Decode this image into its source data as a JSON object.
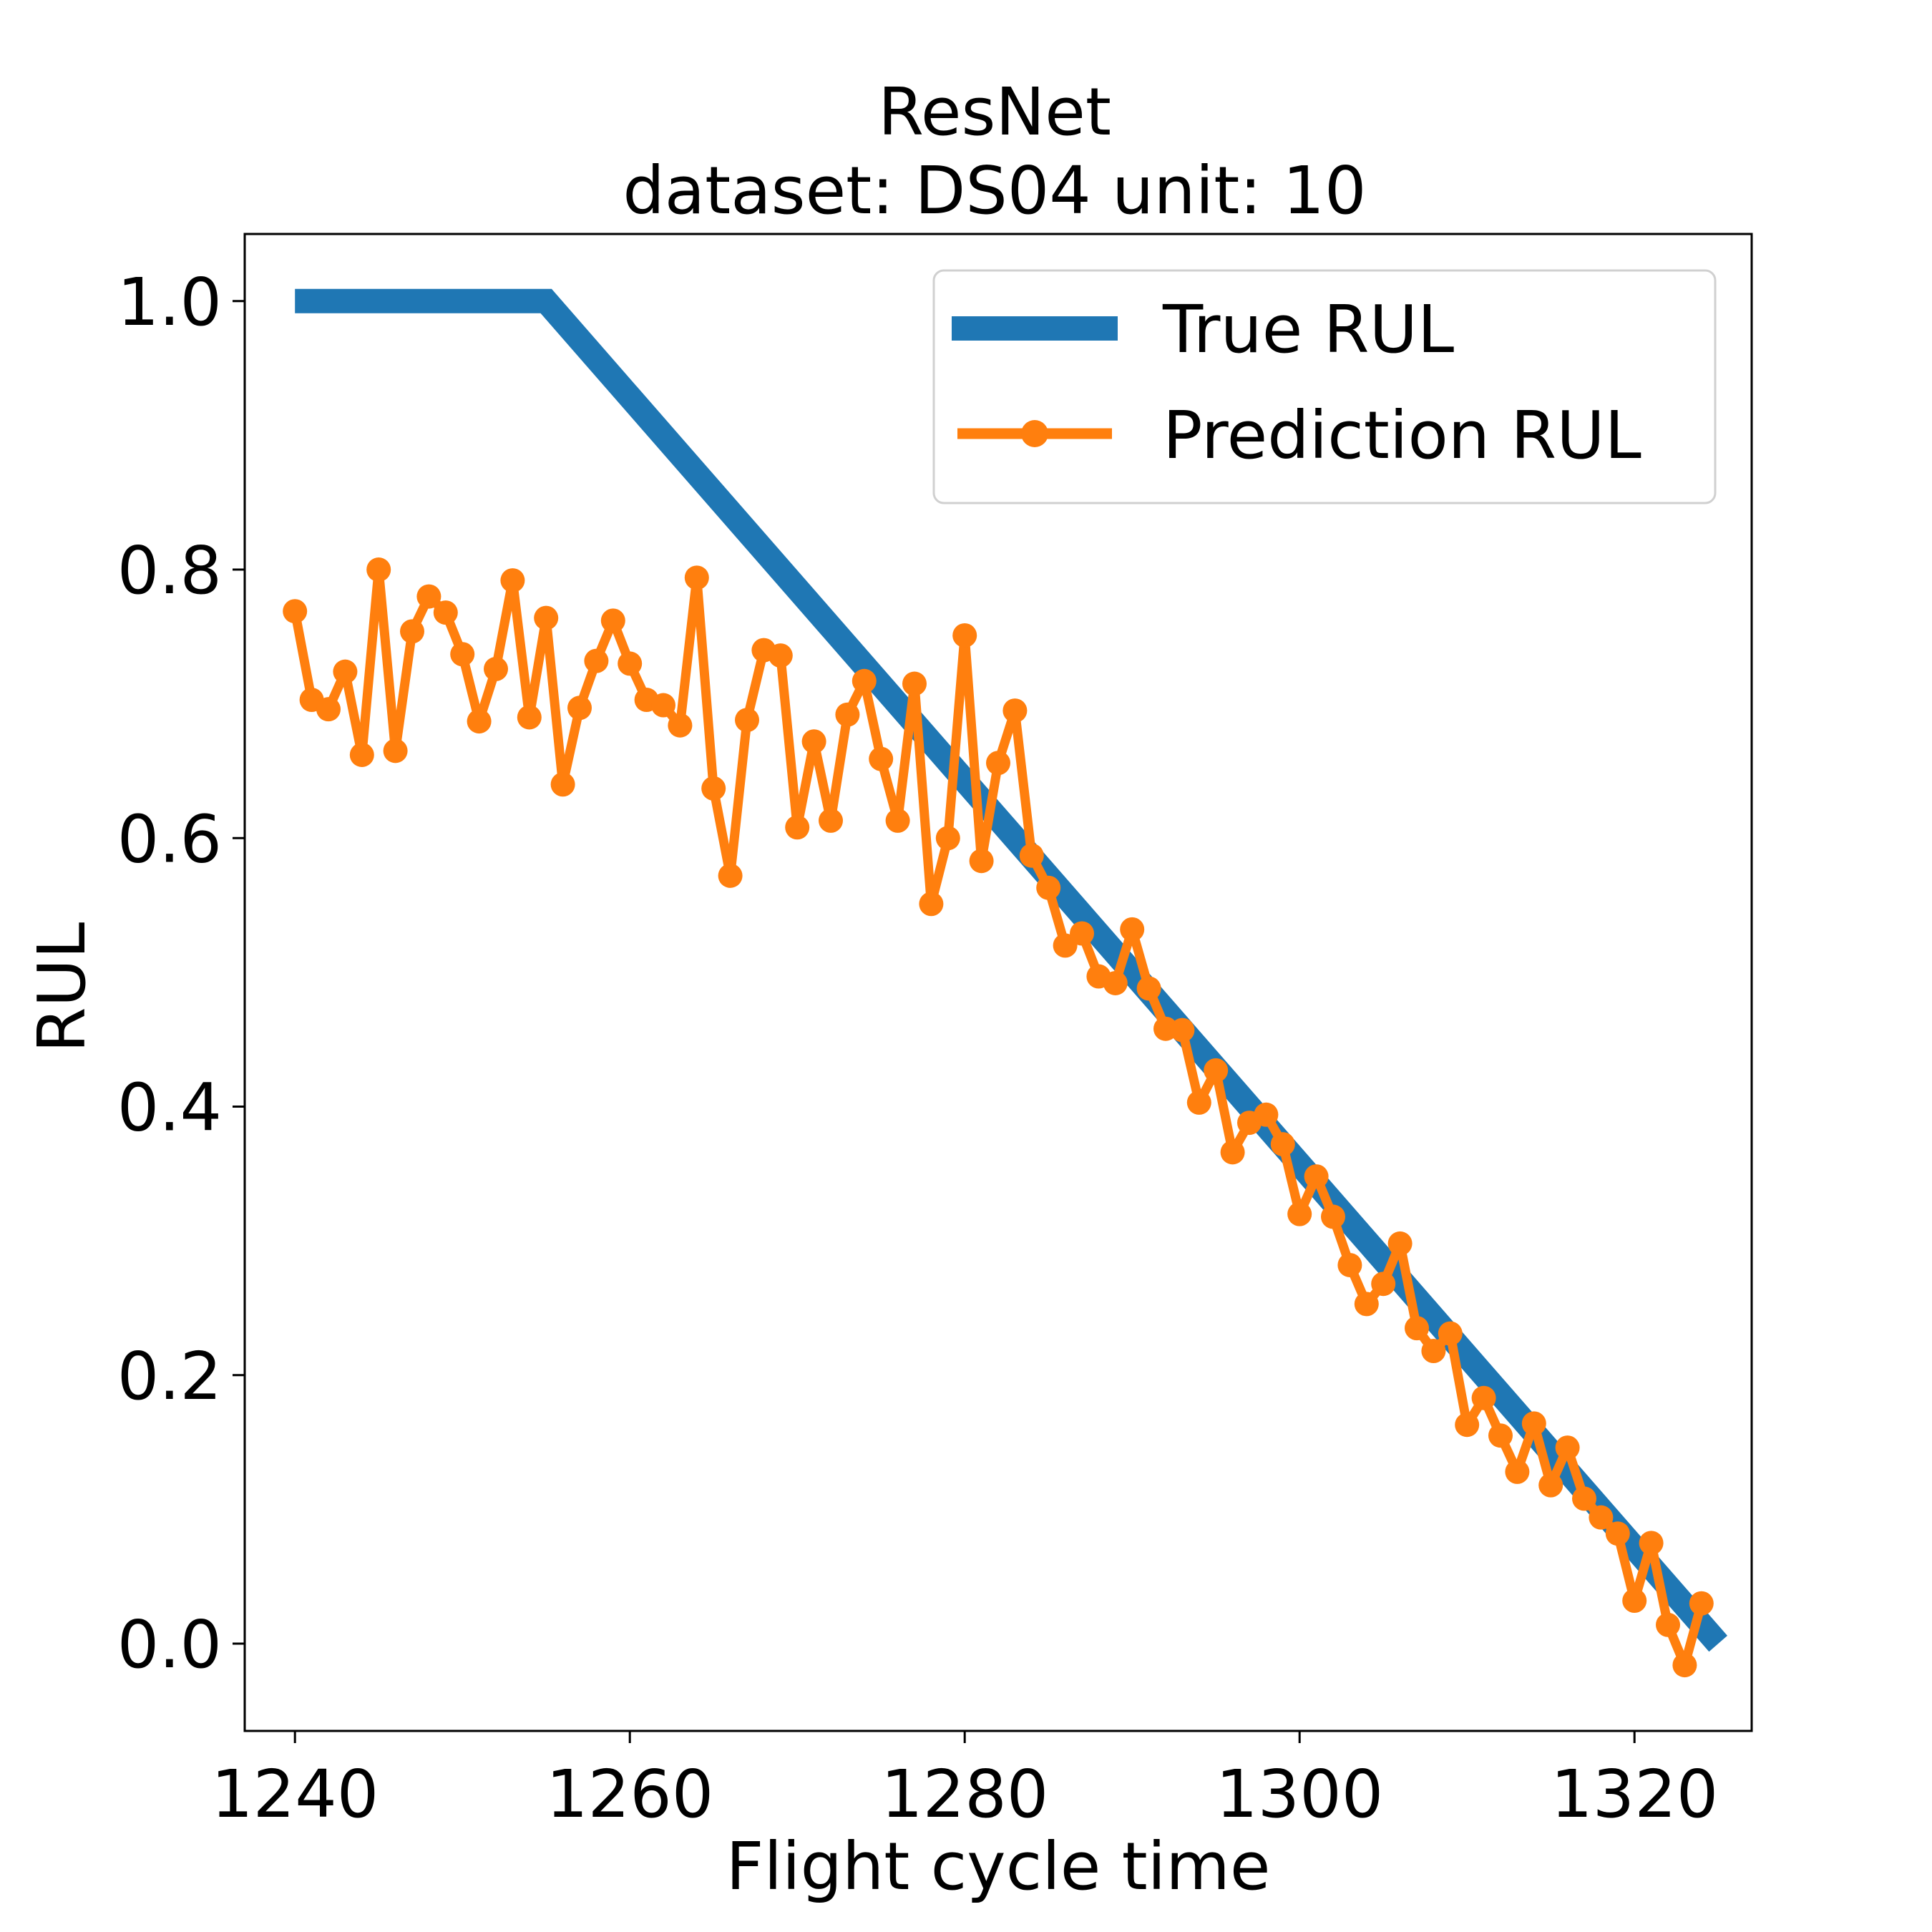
{
  "chart_data": {
    "type": "line",
    "title": [
      "ResNet",
      "dataset: DS04 unit: 10"
    ],
    "xlabel": "Flight cycle time",
    "ylabel": "RUL",
    "xlim": [
      1237,
      1327
    ],
    "ylim": [
      -0.065,
      1.05
    ],
    "xticks": [
      1240,
      1260,
      1280,
      1300,
      1320
    ],
    "xtick_labels": [
      "1240",
      "1260",
      "1280",
      "1300",
      "1320"
    ],
    "yticks": [
      0.0,
      0.2,
      0.4,
      0.6,
      0.8,
      1.0
    ],
    "ytick_labels": [
      "0.0",
      "0.2",
      "0.4",
      "0.6",
      "0.8",
      "1.0"
    ],
    "grid": false,
    "legend_position": "top-right",
    "colors": {
      "true": "#1f77b4",
      "prediction": "#ff7f0e"
    },
    "series": [
      {
        "name": "True RUL",
        "marker": "none",
        "x": [
          1240,
          1255,
          1325
        ],
        "y": [
          1.0,
          1.0,
          0.0
        ]
      },
      {
        "name": "Prediction RUL",
        "marker": "circle",
        "x": [
          1240,
          1241,
          1242,
          1243,
          1244,
          1245,
          1246,
          1247,
          1248,
          1249,
          1250,
          1251,
          1252,
          1253,
          1254,
          1255,
          1256,
          1257,
          1258,
          1259,
          1260,
          1261,
          1262,
          1263,
          1264,
          1265,
          1266,
          1267,
          1268,
          1269,
          1270,
          1271,
          1272,
          1273,
          1274,
          1275,
          1276,
          1277,
          1278,
          1279,
          1280,
          1281,
          1282,
          1283,
          1284,
          1285,
          1286,
          1287,
          1288,
          1289,
          1290,
          1291,
          1292,
          1293,
          1294,
          1295,
          1296,
          1297,
          1298,
          1299,
          1300,
          1301,
          1302,
          1303,
          1304,
          1305,
          1306,
          1307,
          1308,
          1309,
          1310,
          1311,
          1312,
          1313,
          1314,
          1315,
          1316,
          1317,
          1318,
          1319,
          1320,
          1321,
          1322,
          1323,
          1324
        ],
        "y": [
          0.769,
          0.703,
          0.696,
          0.724,
          0.662,
          0.8,
          0.665,
          0.754,
          0.78,
          0.768,
          0.737,
          0.687,
          0.726,
          0.792,
          0.69,
          0.764,
          0.64,
          0.697,
          0.732,
          0.762,
          0.73,
          0.703,
          0.699,
          0.684,
          0.794,
          0.637,
          0.572,
          0.688,
          0.74,
          0.736,
          0.608,
          0.672,
          0.613,
          0.692,
          0.717,
          0.659,
          0.613,
          0.715,
          0.551,
          0.6,
          0.751,
          0.583,
          0.656,
          0.695,
          0.587,
          0.563,
          0.52,
          0.529,
          0.497,
          0.492,
          0.532,
          0.488,
          0.458,
          0.457,
          0.403,
          0.427,
          0.366,
          0.388,
          0.394,
          0.372,
          0.32,
          0.348,
          0.318,
          0.282,
          0.253,
          0.268,
          0.298,
          0.235,
          0.218,
          0.231,
          0.163,
          0.183,
          0.155,
          0.128,
          0.164,
          0.118,
          0.146,
          0.108,
          0.094,
          0.082,
          0.032,
          0.075,
          0.014,
          -0.016,
          0.03
        ]
      }
    ]
  }
}
